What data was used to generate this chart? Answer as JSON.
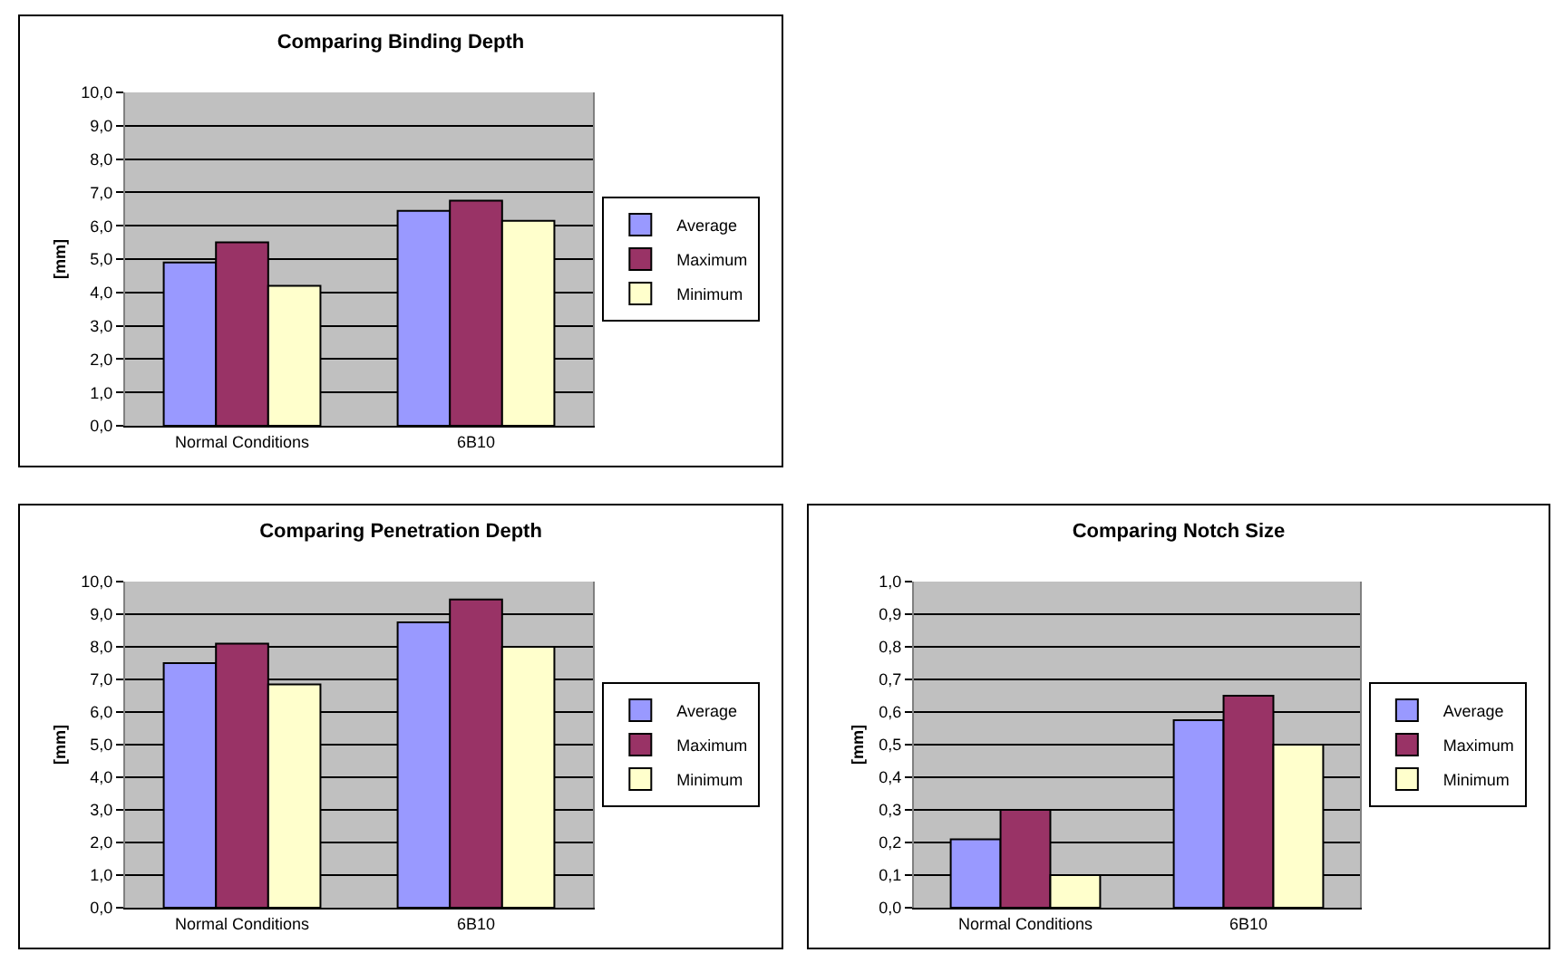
{
  "chart_data": [
    {
      "type": "bar",
      "title": "Comparing Binding Depth",
      "ylabel": "[mm]",
      "categories": [
        "Normal Conditions",
        "6B10"
      ],
      "series": [
        {
          "name": "Average",
          "color": "#9999ff",
          "values": [
            4.9,
            6.45
          ]
        },
        {
          "name": "Maximum",
          "color": "#993366",
          "values": [
            5.5,
            6.75
          ]
        },
        {
          "name": "Minimum",
          "color": "#ffffcc",
          "values": [
            4.2,
            6.15
          ]
        }
      ],
      "ylim": [
        0,
        10
      ],
      "yticks": [
        {
          "value": 0,
          "label": "0,0"
        },
        {
          "value": 1,
          "label": "1,0"
        },
        {
          "value": 2,
          "label": "2,0"
        },
        {
          "value": 3,
          "label": "3,0"
        },
        {
          "value": 4,
          "label": "4,0"
        },
        {
          "value": 5,
          "label": "5,0"
        },
        {
          "value": 6,
          "label": "6,0"
        },
        {
          "value": 7,
          "label": "7,0"
        },
        {
          "value": 8,
          "label": "8,0"
        },
        {
          "value": 9,
          "label": "9,0"
        },
        {
          "value": 10,
          "label": "10,0"
        }
      ],
      "grid": "y",
      "legend": "right"
    },
    {
      "type": "bar",
      "title": "Comparing Penetration Depth",
      "ylabel": "[mm]",
      "categories": [
        "Normal Conditions",
        "6B10"
      ],
      "series": [
        {
          "name": "Average",
          "color": "#9999ff",
          "values": [
            7.5,
            8.75
          ]
        },
        {
          "name": "Maximum",
          "color": "#993366",
          "values": [
            8.1,
            9.45
          ]
        },
        {
          "name": "Minimum",
          "color": "#ffffcc",
          "values": [
            6.85,
            8.0
          ]
        }
      ],
      "ylim": [
        0,
        10
      ],
      "yticks": [
        {
          "value": 0,
          "label": "0,0"
        },
        {
          "value": 1,
          "label": "1,0"
        },
        {
          "value": 2,
          "label": "2,0"
        },
        {
          "value": 3,
          "label": "3,0"
        },
        {
          "value": 4,
          "label": "4,0"
        },
        {
          "value": 5,
          "label": "5,0"
        },
        {
          "value": 6,
          "label": "6,0"
        },
        {
          "value": 7,
          "label": "7,0"
        },
        {
          "value": 8,
          "label": "8,0"
        },
        {
          "value": 9,
          "label": "9,0"
        },
        {
          "value": 10,
          "label": "10,0"
        }
      ],
      "grid": "y",
      "legend": "right"
    },
    {
      "type": "bar",
      "title": "Comparing Notch Size",
      "ylabel": "[mm]",
      "categories": [
        "Normal Conditions",
        "6B10"
      ],
      "series": [
        {
          "name": "Average",
          "color": "#9999ff",
          "values": [
            0.21,
            0.575
          ]
        },
        {
          "name": "Maximum",
          "color": "#993366",
          "values": [
            0.3,
            0.65
          ]
        },
        {
          "name": "Minimum",
          "color": "#ffffcc",
          "values": [
            0.1,
            0.5
          ]
        }
      ],
      "ylim": [
        0,
        1
      ],
      "yticks": [
        {
          "value": 0,
          "label": "0,0"
        },
        {
          "value": 0.1,
          "label": "0,1"
        },
        {
          "value": 0.2,
          "label": "0,2"
        },
        {
          "value": 0.3,
          "label": "0,3"
        },
        {
          "value": 0.4,
          "label": "0,4"
        },
        {
          "value": 0.5,
          "label": "0,5"
        },
        {
          "value": 0.6,
          "label": "0,6"
        },
        {
          "value": 0.7,
          "label": "0,7"
        },
        {
          "value": 0.8,
          "label": "0,8"
        },
        {
          "value": 0.9,
          "label": "0,9"
        },
        {
          "value": 1,
          "label": "1,0"
        }
      ],
      "grid": "y",
      "legend": "right"
    }
  ]
}
